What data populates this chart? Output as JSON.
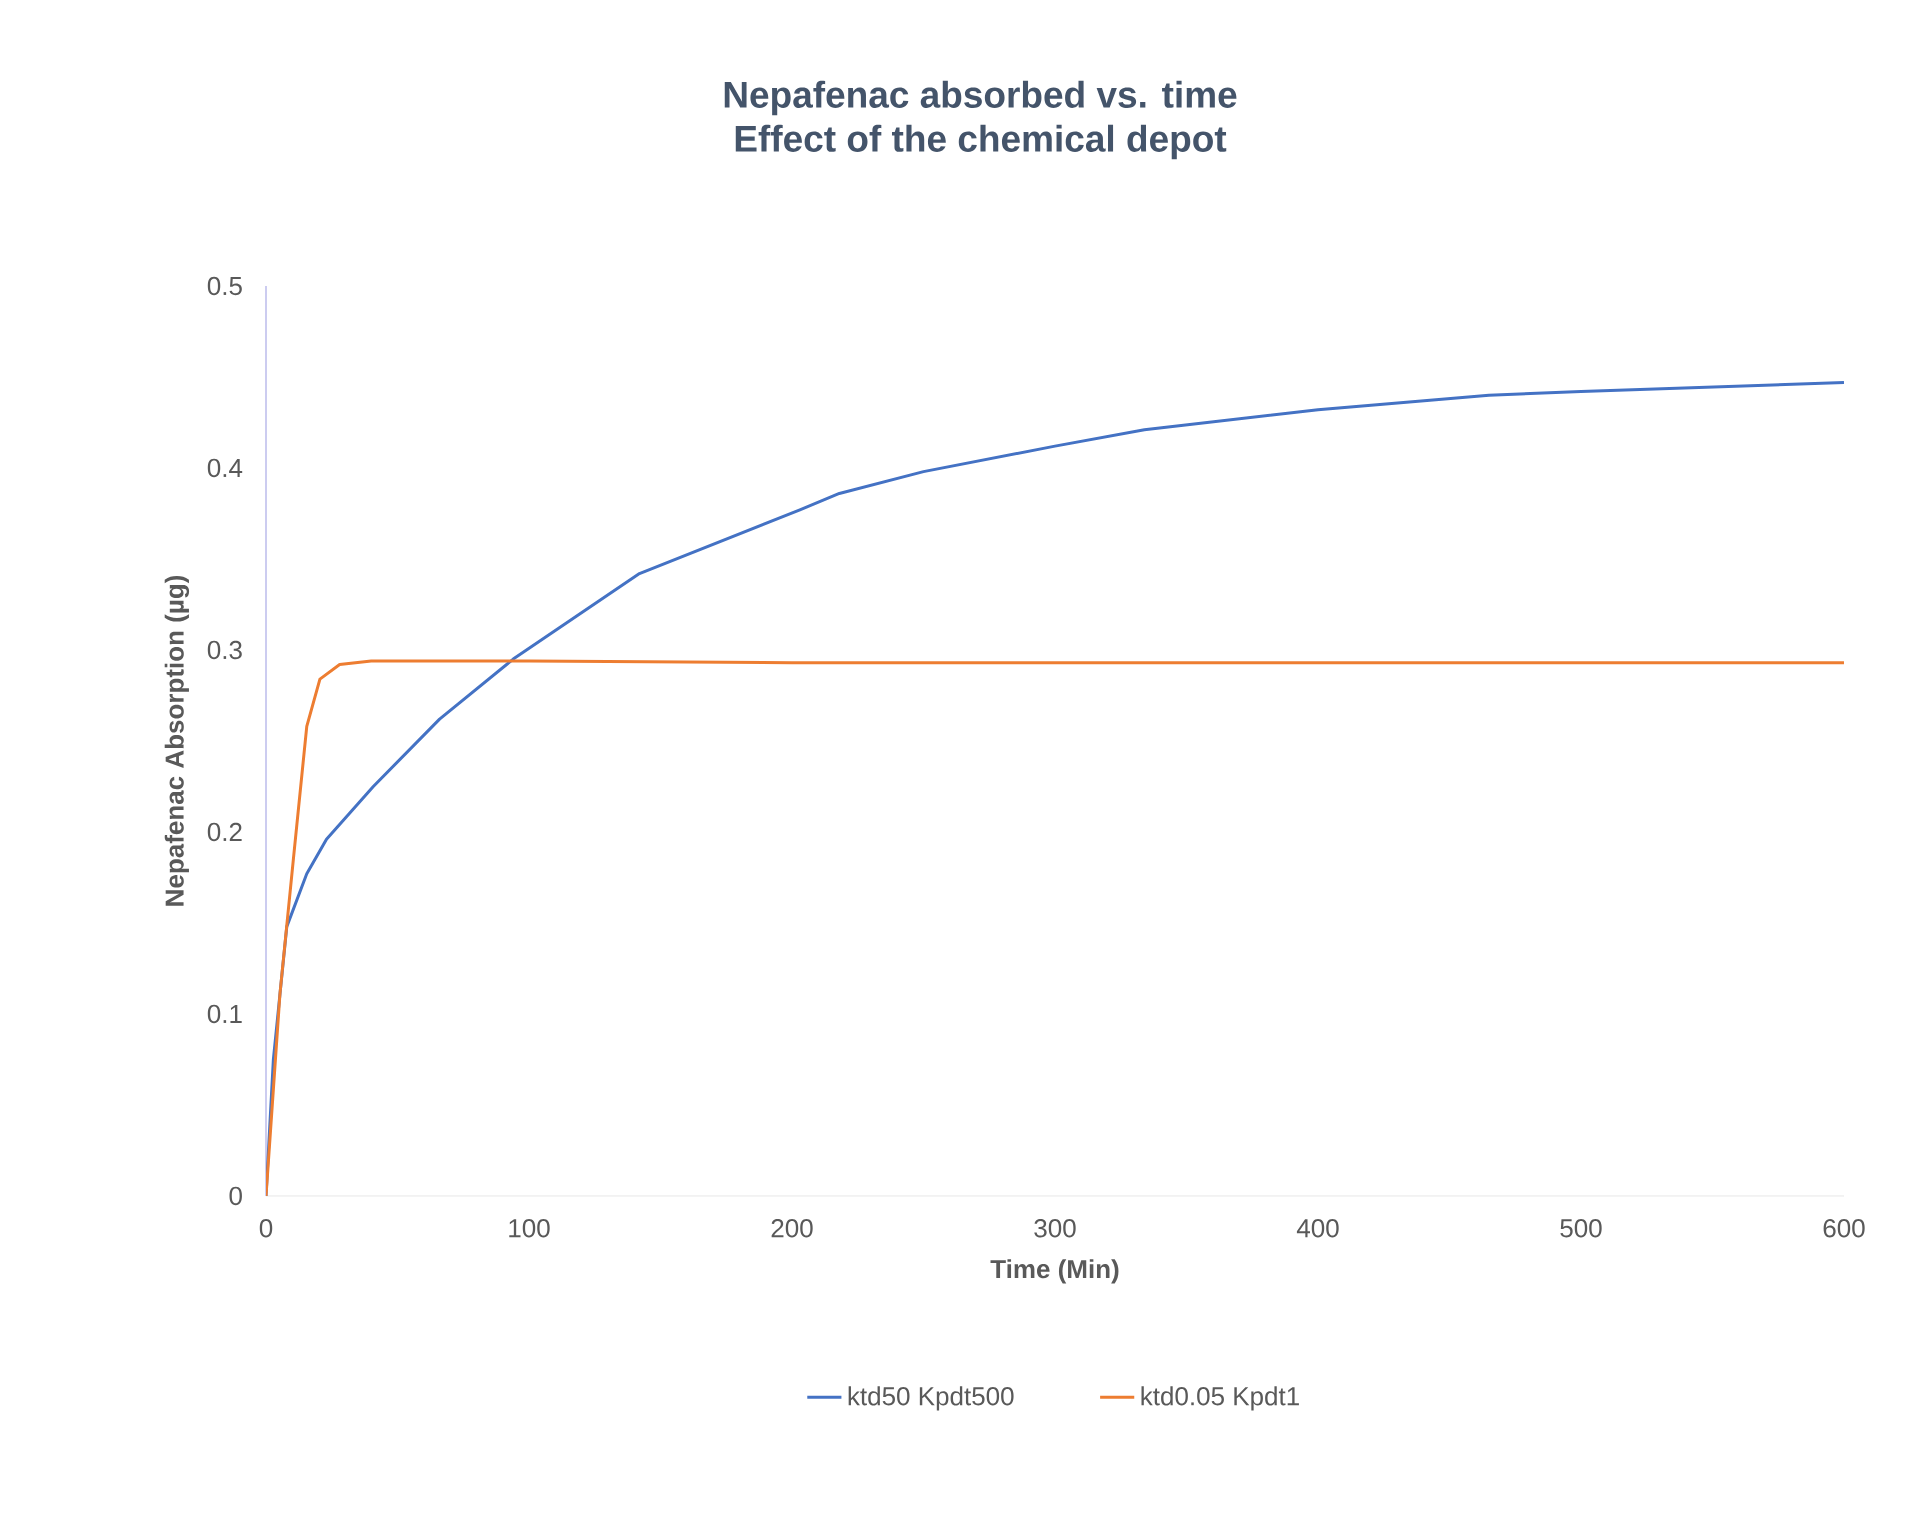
{
  "chart_data": {
    "type": "line",
    "title": "Nepafenac absorbed vs. time",
    "subtitle": "Effect of the chemical depot",
    "xlabel": "Time (Min)",
    "ylabel": "Nepafenac Absorption (µg)",
    "xlim": [
      0,
      600
    ],
    "ylim": [
      0,
      0.5
    ],
    "xticks": [
      0,
      100,
      200,
      300,
      400,
      500,
      600
    ],
    "yticks": [
      0,
      0.1,
      0.2,
      0.3,
      0.4,
      0.5
    ],
    "grid": false,
    "legend": "bottom",
    "marker": "none",
    "line_style": "solid",
    "series": [
      {
        "name": "ktd50 Kpdt500",
        "color": "#4472c4",
        "x": [
          0,
          2.8,
          7.9,
          15.5,
          23,
          40.8,
          66,
          94,
          142,
          203,
          218,
          250,
          300,
          334,
          400,
          465,
          500,
          600
        ],
        "values": [
          0,
          0.075,
          0.148,
          0.177,
          0.196,
          0.225,
          0.262,
          0.295,
          0.342,
          0.377,
          0.386,
          0.398,
          0.412,
          0.421,
          0.432,
          0.44,
          0.442,
          0.447
        ]
      },
      {
        "name": "ktd0.05 Kpdt1",
        "color": "#ed7d31",
        "x": [
          0,
          5.3,
          10.4,
          15.5,
          20.5,
          28,
          40,
          100,
          200,
          400,
          600
        ],
        "values": [
          0,
          0.111,
          0.185,
          0.258,
          0.284,
          0.292,
          0.294,
          0.294,
          0.293,
          0.293,
          0.293
        ]
      }
    ]
  }
}
